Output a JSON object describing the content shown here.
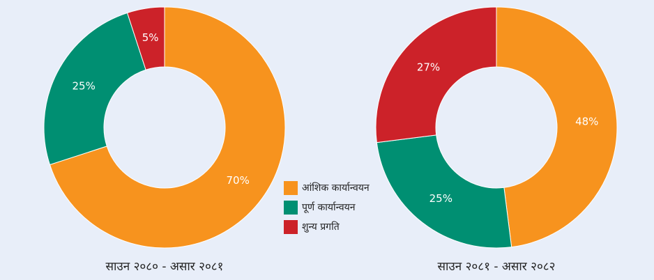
{
  "chart_data": [
    {
      "type": "pie",
      "title": "साउन २०८० - असार २०८१",
      "categories": [
        "आंशिक कार्यान्वयन",
        "पूर्ण कार्यान्वयन",
        "शुन्य प्रगति"
      ],
      "values": [
        70,
        25,
        5
      ],
      "value_labels": [
        "70%",
        "25%",
        "5%"
      ],
      "colors": [
        "#f7931e",
        "#008f72",
        "#cc2229"
      ]
    },
    {
      "type": "pie",
      "title": "साउन २०८१ - असार २०८२",
      "categories": [
        "आंशिक कार्यान्वयन",
        "पूर्ण कार्यान्वयन",
        "शुन्य प्रगति"
      ],
      "values": [
        48,
        25,
        27
      ],
      "value_labels": [
        "48%",
        "25%",
        "27%"
      ],
      "colors": [
        "#f7931e",
        "#008f72",
        "#cc2229"
      ]
    }
  ]
}
